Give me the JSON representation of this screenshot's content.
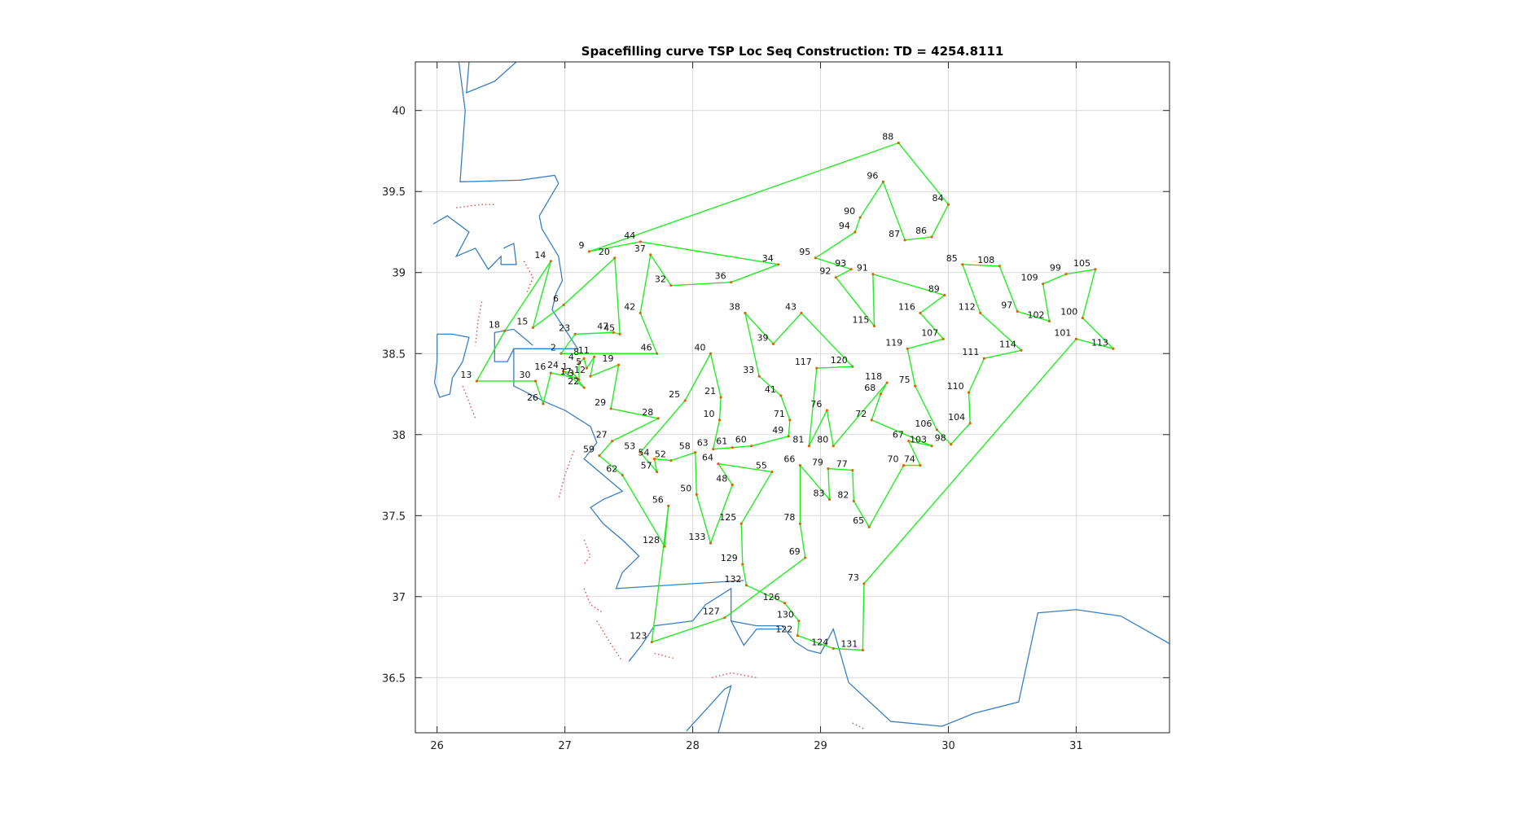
{
  "chart_data": {
    "type": "line",
    "title": "Spacefilling curve TSP Loc Seq Construction: TD = 4254.8111",
    "xlabel": "",
    "ylabel": "",
    "xlim": [
      25.83,
      31.73
    ],
    "ylim": [
      36.16,
      40.3
    ],
    "xticks": [
      26,
      27,
      28,
      29,
      30,
      31
    ],
    "yticks": [
      36.5,
      37,
      37.5,
      38,
      38.5,
      39,
      39.5,
      40
    ],
    "grid": true,
    "colors": {
      "route": "#22ee22",
      "coast": "#3a7fc1",
      "border": "#e05050",
      "node": "#d46a00",
      "grid": "#d9d9d9"
    },
    "coastline": [
      [
        [
          26.25,
          40.3
        ],
        [
          26.23,
          40.11
        ],
        [
          26.45,
          40.18
        ],
        [
          26.62,
          40.3
        ]
      ],
      [
        [
          26.17,
          40.3
        ],
        [
          26.22,
          40.0
        ],
        [
          26.18,
          39.56
        ],
        [
          26.65,
          39.57
        ],
        [
          26.92,
          39.6
        ],
        [
          26.95,
          39.55
        ],
        [
          26.8,
          39.35
        ],
        [
          26.82,
          39.27
        ],
        [
          26.95,
          39.1
        ],
        [
          26.98,
          38.95
        ],
        [
          26.93,
          38.87
        ],
        [
          26.9,
          38.77
        ],
        [
          27.0,
          38.65
        ],
        [
          27.1,
          38.53
        ],
        [
          26.85,
          38.53
        ],
        [
          26.6,
          38.53
        ],
        [
          26.55,
          38.45
        ],
        [
          26.45,
          38.45
        ],
        [
          26.45,
          38.63
        ],
        [
          26.6,
          38.65
        ],
        [
          26.75,
          38.55
        ]
      ],
      [
        [
          26.6,
          38.53
        ],
        [
          26.6,
          38.3
        ],
        [
          26.85,
          38.2
        ],
        [
          27.0,
          38.15
        ],
        [
          27.2,
          38.05
        ],
        [
          27.25,
          37.95
        ],
        [
          27.15,
          37.85
        ],
        [
          27.3,
          37.75
        ],
        [
          27.45,
          37.65
        ],
        [
          27.3,
          37.6
        ],
        [
          27.2,
          37.55
        ],
        [
          27.3,
          37.45
        ],
        [
          27.45,
          37.35
        ],
        [
          27.58,
          37.25
        ],
        [
          27.45,
          37.15
        ],
        [
          27.4,
          37.05
        ],
        [
          28.4,
          37.1
        ]
      ],
      [
        [
          25.97,
          39.3
        ],
        [
          26.08,
          39.35
        ],
        [
          26.25,
          39.25
        ],
        [
          26.15,
          39.1
        ],
        [
          26.3,
          39.15
        ],
        [
          26.4,
          39.02
        ],
        [
          26.5,
          39.1
        ],
        [
          26.5,
          39.05
        ],
        [
          26.62,
          39.05
        ],
        [
          26.6,
          39.18
        ],
        [
          26.52,
          39.15
        ]
      ],
      [
        [
          26.0,
          38.62
        ],
        [
          26.12,
          38.62
        ],
        [
          26.25,
          38.6
        ],
        [
          26.2,
          38.45
        ],
        [
          26.12,
          38.35
        ],
        [
          26.1,
          38.25
        ],
        [
          26.02,
          38.23
        ],
        [
          25.98,
          38.32
        ],
        [
          26.0,
          38.45
        ],
        [
          26.0,
          38.62
        ]
      ],
      [
        [
          27.5,
          36.6
        ],
        [
          27.6,
          36.7
        ],
        [
          27.7,
          36.82
        ],
        [
          27.8,
          36.83
        ],
        [
          28.0,
          36.85
        ],
        [
          28.1,
          36.95
        ],
        [
          28.3,
          37.05
        ],
        [
          28.3,
          36.85
        ],
        [
          28.5,
          36.82
        ],
        [
          28.7,
          36.82
        ],
        [
          28.8,
          36.72
        ],
        [
          28.9,
          36.67
        ],
        [
          29.0,
          36.65
        ],
        [
          29.1,
          36.8
        ],
        [
          29.22,
          36.47
        ],
        [
          29.55,
          36.23
        ],
        [
          29.95,
          36.2
        ],
        [
          30.2,
          36.28
        ],
        [
          30.55,
          36.35
        ],
        [
          30.7,
          36.9
        ],
        [
          31.0,
          36.92
        ],
        [
          31.35,
          36.88
        ],
        [
          31.73,
          36.71
        ]
      ],
      [
        [
          27.95,
          36.17
        ],
        [
          28.1,
          36.3
        ],
        [
          28.25,
          36.43
        ],
        [
          28.3,
          36.45
        ],
        [
          28.2,
          36.16
        ]
      ],
      [
        [
          28.3,
          36.85
        ],
        [
          28.4,
          36.7
        ],
        [
          28.5,
          36.8
        ],
        [
          28.7,
          36.8
        ]
      ]
    ],
    "borders": [
      [
        [
          26.15,
          39.4
        ],
        [
          26.35,
          39.42
        ],
        [
          26.45,
          39.42
        ]
      ],
      [
        [
          26.68,
          39.07
        ],
        [
          26.75,
          38.97
        ],
        [
          26.7,
          38.87
        ]
      ],
      [
        [
          26.35,
          38.82
        ],
        [
          26.32,
          38.7
        ],
        [
          26.3,
          38.55
        ]
      ],
      [
        [
          26.2,
          38.3
        ],
        [
          26.25,
          38.2
        ],
        [
          26.3,
          38.1
        ]
      ],
      [
        [
          27.07,
          37.9
        ],
        [
          27.0,
          37.75
        ],
        [
          26.95,
          37.6
        ]
      ],
      [
        [
          27.15,
          37.35
        ],
        [
          27.2,
          37.25
        ],
        [
          27.15,
          37.2
        ]
      ],
      [
        [
          27.15,
          37.05
        ],
        [
          27.2,
          36.95
        ],
        [
          27.3,
          36.9
        ]
      ],
      [
        [
          27.25,
          36.85
        ],
        [
          27.35,
          36.72
        ],
        [
          27.45,
          36.6
        ]
      ],
      [
        [
          27.7,
          36.65
        ],
        [
          27.85,
          36.62
        ]
      ],
      [
        [
          28.15,
          36.5
        ],
        [
          28.3,
          36.53
        ],
        [
          28.5,
          36.5
        ]
      ],
      [
        [
          29.25,
          36.22
        ],
        [
          29.35,
          36.18
        ]
      ]
    ],
    "route": [
      {
        "id": "88",
        "x": 29.61,
        "y": 39.8
      },
      {
        "id": "84",
        "x": 30.0,
        "y": 39.42
      },
      {
        "id": "86",
        "x": 29.87,
        "y": 39.22
      },
      {
        "id": "87",
        "x": 29.66,
        "y": 39.2
      },
      {
        "id": "96",
        "x": 29.49,
        "y": 39.56
      },
      {
        "id": "90",
        "x": 29.31,
        "y": 39.34
      },
      {
        "id": "94",
        "x": 29.27,
        "y": 39.25
      },
      {
        "id": "95",
        "x": 28.96,
        "y": 39.09
      },
      {
        "id": "93",
        "x": 29.24,
        "y": 39.02
      },
      {
        "id": "92",
        "x": 29.12,
        "y": 38.97
      },
      {
        "id": "115",
        "x": 29.42,
        "y": 38.67
      },
      {
        "id": "91",
        "x": 29.41,
        "y": 38.99
      },
      {
        "id": "89",
        "x": 29.97,
        "y": 38.86
      },
      {
        "id": "116",
        "x": 29.78,
        "y": 38.75
      },
      {
        "id": "107",
        "x": 29.96,
        "y": 38.59
      },
      {
        "id": "119",
        "x": 29.68,
        "y": 38.53
      },
      {
        "id": "75",
        "x": 29.74,
        "y": 38.3
      },
      {
        "id": "106",
        "x": 29.91,
        "y": 38.03
      },
      {
        "id": "98",
        "x": 30.02,
        "y": 37.94
      },
      {
        "id": "104",
        "x": 30.17,
        "y": 38.07
      },
      {
        "id": "110",
        "x": 30.16,
        "y": 38.26
      },
      {
        "id": "111",
        "x": 30.28,
        "y": 38.47
      },
      {
        "id": "114",
        "x": 30.57,
        "y": 38.52
      },
      {
        "id": "112",
        "x": 30.25,
        "y": 38.75
      },
      {
        "id": "85",
        "x": 30.11,
        "y": 39.05
      },
      {
        "id": "108",
        "x": 30.4,
        "y": 39.04
      },
      {
        "id": "97",
        "x": 30.54,
        "y": 38.76
      },
      {
        "id": "102",
        "x": 30.79,
        "y": 38.7
      },
      {
        "id": "109",
        "x": 30.74,
        "y": 38.93
      },
      {
        "id": "99",
        "x": 30.92,
        "y": 38.99
      },
      {
        "id": "105",
        "x": 31.15,
        "y": 39.02
      },
      {
        "id": "100",
        "x": 31.05,
        "y": 38.72
      },
      {
        "id": "113",
        "x": 31.29,
        "y": 38.53
      },
      {
        "id": "101",
        "x": 31.0,
        "y": 38.59
      },
      {
        "id": "73",
        "x": 29.34,
        "y": 37.08
      },
      {
        "id": "131",
        "x": 29.33,
        "y": 36.67
      },
      {
        "id": "124",
        "x": 29.1,
        "y": 36.68
      },
      {
        "id": "122",
        "x": 28.82,
        "y": 36.76
      },
      {
        "id": "130",
        "x": 28.83,
        "y": 36.85
      },
      {
        "id": "126",
        "x": 28.72,
        "y": 36.96
      },
      {
        "id": "132",
        "x": 28.42,
        "y": 37.07
      },
      {
        "id": "129",
        "x": 28.39,
        "y": 37.2
      },
      {
        "id": "125",
        "x": 28.38,
        "y": 37.45
      },
      {
        "id": "55",
        "x": 28.62,
        "y": 37.77
      },
      {
        "id": "64",
        "x": 28.2,
        "y": 37.82
      },
      {
        "id": "48",
        "x": 28.31,
        "y": 37.69
      },
      {
        "id": "133",
        "x": 28.14,
        "y": 37.33
      },
      {
        "id": "50",
        "x": 28.03,
        "y": 37.63
      },
      {
        "id": "58",
        "x": 28.02,
        "y": 37.89
      },
      {
        "id": "52",
        "x": 27.83,
        "y": 37.84
      },
      {
        "id": "54",
        "x": 27.7,
        "y": 37.85
      },
      {
        "id": "57",
        "x": 27.72,
        "y": 37.77
      },
      {
        "id": "53",
        "x": 27.59,
        "y": 37.89
      },
      {
        "id": "25",
        "x": 27.94,
        "y": 38.21
      },
      {
        "id": "40",
        "x": 28.14,
        "y": 38.5
      },
      {
        "id": "21",
        "x": 28.22,
        "y": 38.23
      },
      {
        "id": "10",
        "x": 28.21,
        "y": 38.09
      },
      {
        "id": "63",
        "x": 28.16,
        "y": 37.91
      },
      {
        "id": "61",
        "x": 28.31,
        "y": 37.92
      },
      {
        "id": "60",
        "x": 28.46,
        "y": 37.93
      },
      {
        "id": "49",
        "x": 28.75,
        "y": 37.99
      },
      {
        "id": "71",
        "x": 28.76,
        "y": 38.09
      },
      {
        "id": "41",
        "x": 28.69,
        "y": 38.24
      },
      {
        "id": "33",
        "x": 28.52,
        "y": 38.36
      },
      {
        "id": "38",
        "x": 28.41,
        "y": 38.75
      },
      {
        "id": "39",
        "x": 28.63,
        "y": 38.56
      },
      {
        "id": "43",
        "x": 28.85,
        "y": 38.75
      },
      {
        "id": "120",
        "x": 29.25,
        "y": 38.42
      },
      {
        "id": "117",
        "x": 28.97,
        "y": 38.41
      },
      {
        "id": "81",
        "x": 28.91,
        "y": 37.93
      },
      {
        "id": "76",
        "x": 29.05,
        "y": 38.15
      },
      {
        "id": "80",
        "x": 29.1,
        "y": 37.93
      },
      {
        "id": "118",
        "x": 29.52,
        "y": 38.32
      },
      {
        "id": "68",
        "x": 29.47,
        "y": 38.25
      },
      {
        "id": "72",
        "x": 29.4,
        "y": 38.09
      },
      {
        "id": "103",
        "x": 29.87,
        "y": 37.93
      },
      {
        "id": "67",
        "x": 29.69,
        "y": 37.96
      },
      {
        "id": "74",
        "x": 29.78,
        "y": 37.81
      },
      {
        "id": "70",
        "x": 29.65,
        "y": 37.81
      },
      {
        "id": "65",
        "x": 29.38,
        "y": 37.43
      },
      {
        "id": "82",
        "x": 29.26,
        "y": 37.59
      },
      {
        "id": "77",
        "x": 29.25,
        "y": 37.78
      },
      {
        "id": "79",
        "x": 29.06,
        "y": 37.79
      },
      {
        "id": "83",
        "x": 29.07,
        "y": 37.6
      },
      {
        "id": "66",
        "x": 28.84,
        "y": 37.81
      },
      {
        "id": "78",
        "x": 28.84,
        "y": 37.45
      },
      {
        "id": "69",
        "x": 28.88,
        "y": 37.24
      },
      {
        "id": "127",
        "x": 28.25,
        "y": 36.87
      },
      {
        "id": "123",
        "x": 27.68,
        "y": 36.72
      },
      {
        "id": "56",
        "x": 27.81,
        "y": 37.56
      },
      {
        "id": "128",
        "x": 27.78,
        "y": 37.31
      },
      {
        "id": "62",
        "x": 27.45,
        "y": 37.75
      },
      {
        "id": "59",
        "x": 27.27,
        "y": 37.87
      },
      {
        "id": "27",
        "x": 27.37,
        "y": 37.96
      },
      {
        "id": "28",
        "x": 27.73,
        "y": 38.1
      },
      {
        "id": "29",
        "x": 27.36,
        "y": 38.16
      },
      {
        "id": "19",
        "x": 27.42,
        "y": 38.43
      },
      {
        "id": "12",
        "x": 27.2,
        "y": 38.36
      },
      {
        "id": "11",
        "x": 27.23,
        "y": 38.48
      },
      {
        "id": "5",
        "x": 27.17,
        "y": 38.41
      },
      {
        "id": "8",
        "x": 27.15,
        "y": 38.47
      },
      {
        "id": "4",
        "x": 27.11,
        "y": 38.44
      },
      {
        "id": "3",
        "x": 27.11,
        "y": 38.34
      },
      {
        "id": "1",
        "x": 27.06,
        "y": 38.38
      },
      {
        "id": "24",
        "x": 26.99,
        "y": 38.39
      },
      {
        "id": "22",
        "x": 27.15,
        "y": 38.29
      },
      {
        "id": "17",
        "x": 27.09,
        "y": 38.35
      },
      {
        "id": "16",
        "x": 26.89,
        "y": 38.38
      },
      {
        "id": "26",
        "x": 26.83,
        "y": 38.19
      },
      {
        "id": "30",
        "x": 26.77,
        "y": 38.33
      },
      {
        "id": "13",
        "x": 26.31,
        "y": 38.33
      },
      {
        "id": "18",
        "x": 26.53,
        "y": 38.64
      },
      {
        "id": "14",
        "x": 26.89,
        "y": 39.07
      },
      {
        "id": "15",
        "x": 26.75,
        "y": 38.66
      },
      {
        "id": "6",
        "x": 26.99,
        "y": 38.8
      },
      {
        "id": "20",
        "x": 27.39,
        "y": 39.09
      },
      {
        "id": "45",
        "x": 27.43,
        "y": 38.62
      },
      {
        "id": "47",
        "x": 27.38,
        "y": 38.63
      },
      {
        "id": "23",
        "x": 27.08,
        "y": 38.62
      },
      {
        "id": "2",
        "x": 26.97,
        "y": 38.5
      },
      {
        "id": "46",
        "x": 27.72,
        "y": 38.5
      },
      {
        "id": "42",
        "x": 27.59,
        "y": 38.75
      },
      {
        "id": "37",
        "x": 27.67,
        "y": 39.11
      },
      {
        "id": "32",
        "x": 27.83,
        "y": 38.92
      },
      {
        "id": "36",
        "x": 28.3,
        "y": 38.94
      },
      {
        "id": "34",
        "x": 28.67,
        "y": 39.05
      },
      {
        "id": "44",
        "x": 27.59,
        "y": 39.19
      },
      {
        "id": "9",
        "x": 27.19,
        "y": 39.13
      }
    ]
  }
}
